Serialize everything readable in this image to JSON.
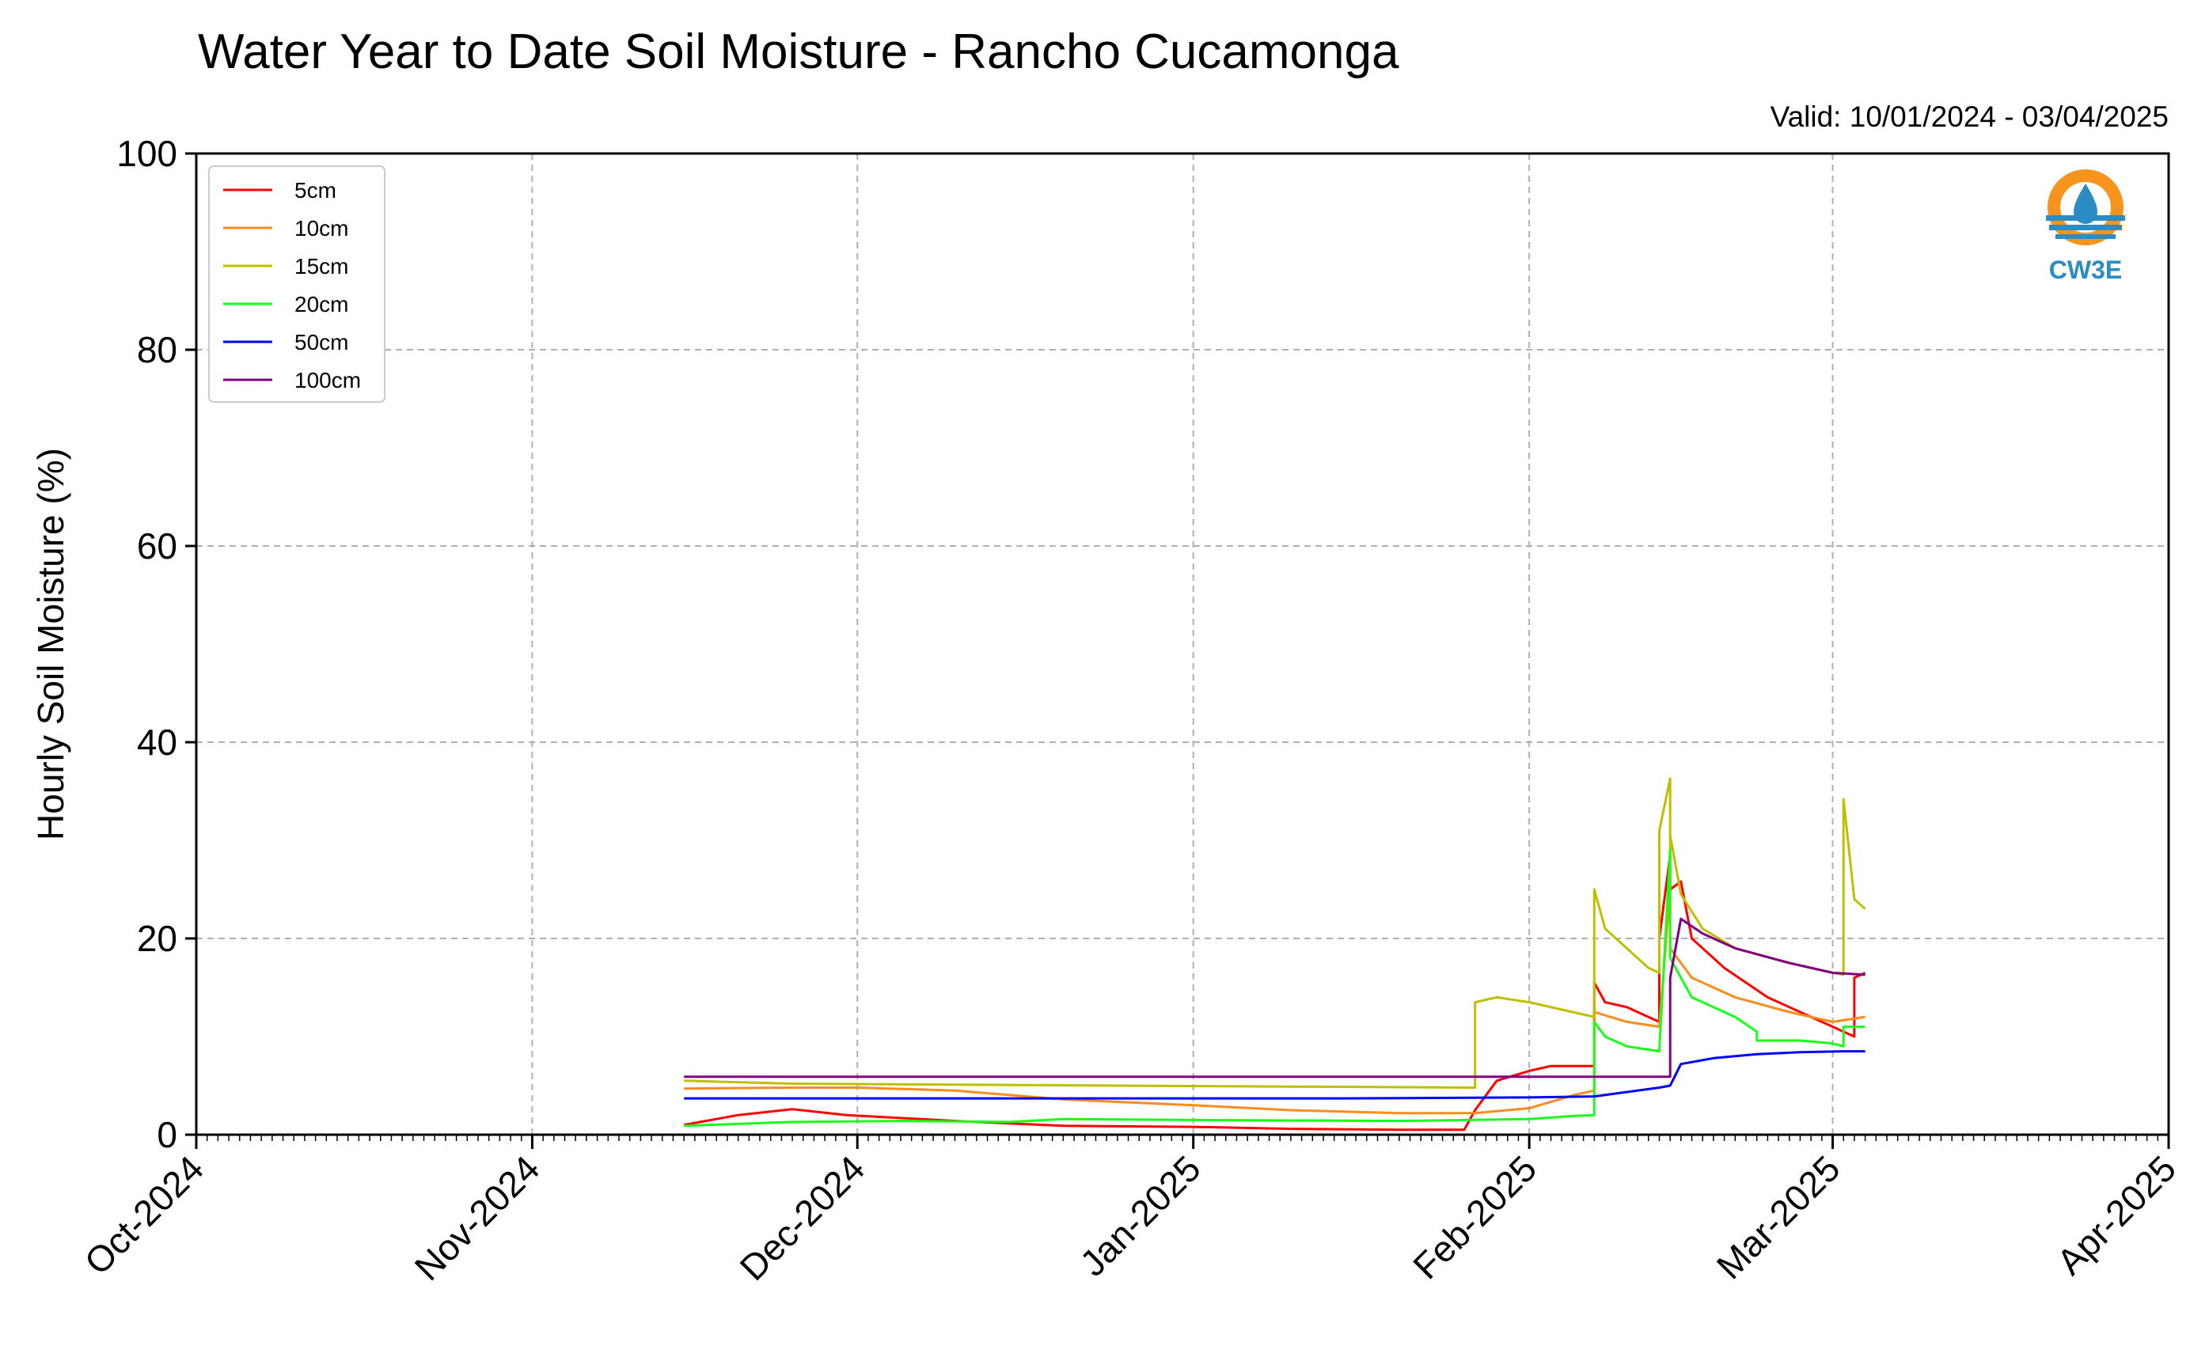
{
  "chart_data": {
    "type": "line",
    "title": "Water Year to Date Soil Moisture - Rancho Cucamonga",
    "subtitle": "Valid: 10/01/2024 - 03/04/2025",
    "xlabel": "",
    "ylabel": "Hourly Soil Moisture (%)",
    "xlim": [
      "2024-10-01",
      "2025-04-01"
    ],
    "ylim": [
      0,
      100
    ],
    "y_ticks": [
      0,
      20,
      40,
      60,
      80,
      100
    ],
    "x_ticks": [
      {
        "date": "2024-10-01",
        "label": "Oct-2024"
      },
      {
        "date": "2024-11-01",
        "label": "Nov-2024"
      },
      {
        "date": "2024-12-01",
        "label": "Dec-2024"
      },
      {
        "date": "2025-01-01",
        "label": "Jan-2025"
      },
      {
        "date": "2025-02-01",
        "label": "Feb-2025"
      },
      {
        "date": "2025-03-01",
        "label": "Mar-2025"
      },
      {
        "date": "2025-04-01",
        "label": "Apr-2025"
      }
    ],
    "grid": true,
    "legend_position": "top-left",
    "series": [
      {
        "name": "5cm",
        "color": "#ff0000",
        "points": [
          [
            "2024-11-15",
            1.0
          ],
          [
            "2024-11-20",
            2.0
          ],
          [
            "2024-11-25",
            2.6
          ],
          [
            "2024-11-30",
            2.0
          ],
          [
            "2024-12-10",
            1.4
          ],
          [
            "2024-12-20",
            0.9
          ],
          [
            "2025-01-01",
            0.8
          ],
          [
            "2025-01-10",
            0.6
          ],
          [
            "2025-01-20",
            0.5
          ],
          [
            "2025-01-26",
            0.5
          ],
          [
            "2025-01-27",
            2.5
          ],
          [
            "2025-01-29",
            5.5
          ],
          [
            "2025-02-01",
            6.5
          ],
          [
            "2025-02-03",
            7.0
          ],
          [
            "2025-02-06",
            7.0
          ],
          [
            "2025-02-07",
            7.0
          ],
          [
            "2025-02-07",
            15.5
          ],
          [
            "2025-02-08",
            13.5
          ],
          [
            "2025-02-10",
            13.0
          ],
          [
            "2025-02-12",
            12.0
          ],
          [
            "2025-02-13",
            11.5
          ],
          [
            "2025-02-13",
            20.0
          ],
          [
            "2025-02-14",
            28.5
          ],
          [
            "2025-02-14",
            25.0
          ],
          [
            "2025-02-15",
            25.8
          ],
          [
            "2025-02-16",
            20.0
          ],
          [
            "2025-02-19",
            17.0
          ],
          [
            "2025-02-23",
            14.0
          ],
          [
            "2025-02-27",
            12.0
          ],
          [
            "2025-03-02",
            10.5
          ],
          [
            "2025-03-03",
            10.0
          ],
          [
            "2025-03-03",
            16.0
          ],
          [
            "2025-03-04",
            16.5
          ]
        ]
      },
      {
        "name": "10cm",
        "color": "#ff8c1a",
        "points": [
          [
            "2024-11-15",
            4.7
          ],
          [
            "2024-11-25",
            4.8
          ],
          [
            "2024-12-01",
            4.8
          ],
          [
            "2024-12-10",
            4.5
          ],
          [
            "2024-12-20",
            3.6
          ],
          [
            "2025-01-01",
            3.0
          ],
          [
            "2025-01-10",
            2.5
          ],
          [
            "2025-01-20",
            2.2
          ],
          [
            "2025-01-27",
            2.2
          ],
          [
            "2025-02-01",
            2.7
          ],
          [
            "2025-02-05",
            4.0
          ],
          [
            "2025-02-07",
            4.5
          ],
          [
            "2025-02-07",
            12.5
          ],
          [
            "2025-02-10",
            11.5
          ],
          [
            "2025-02-13",
            11.0
          ],
          [
            "2025-02-14",
            25.0
          ],
          [
            "2025-02-14",
            19.0
          ],
          [
            "2025-02-16",
            16.0
          ],
          [
            "2025-02-20",
            14.0
          ],
          [
            "2025-02-25",
            12.5
          ],
          [
            "2025-03-01",
            11.5
          ],
          [
            "2025-03-04",
            12.0
          ]
        ]
      },
      {
        "name": "15cm",
        "color": "#bfbf00",
        "points": [
          [
            "2024-11-15",
            5.5
          ],
          [
            "2024-11-25",
            5.2
          ],
          [
            "2024-12-10",
            5.1
          ],
          [
            "2024-12-25",
            5.0
          ],
          [
            "2025-01-10",
            4.9
          ],
          [
            "2025-01-27",
            4.8
          ],
          [
            "2025-01-27",
            13.5
          ],
          [
            "2025-01-29",
            14.0
          ],
          [
            "2025-02-01",
            13.5
          ],
          [
            "2025-02-05",
            12.5
          ],
          [
            "2025-02-07",
            12.0
          ],
          [
            "2025-02-07",
            25.0
          ],
          [
            "2025-02-08",
            21.0
          ],
          [
            "2025-02-10",
            19.0
          ],
          [
            "2025-02-12",
            17.0
          ],
          [
            "2025-02-13",
            16.5
          ],
          [
            "2025-02-13",
            31.0
          ],
          [
            "2025-02-14",
            36.3
          ],
          [
            "2025-02-14",
            28.5
          ],
          [
            "2025-02-14",
            30.5
          ],
          [
            "2025-02-15",
            24.5
          ],
          [
            "2025-02-17",
            21.0
          ],
          [
            "2025-02-20",
            19.0
          ],
          [
            "2025-02-25",
            17.5
          ],
          [
            "2025-03-01",
            16.5
          ],
          [
            "2025-03-02",
            16.3
          ],
          [
            "2025-03-02",
            34.2
          ],
          [
            "2025-03-03",
            24.0
          ],
          [
            "2025-03-04",
            23.0
          ]
        ]
      },
      {
        "name": "20cm",
        "color": "#1aff1a",
        "points": [
          [
            "2024-11-15",
            0.9
          ],
          [
            "2024-11-20",
            1.1
          ],
          [
            "2024-11-25",
            1.3
          ],
          [
            "2024-12-05",
            1.4
          ],
          [
            "2024-12-15",
            1.3
          ],
          [
            "2024-12-20",
            1.6
          ],
          [
            "2025-01-01",
            1.5
          ],
          [
            "2025-01-20",
            1.4
          ],
          [
            "2025-02-01",
            1.6
          ],
          [
            "2025-02-05",
            1.9
          ],
          [
            "2025-02-07",
            2.0
          ],
          [
            "2025-02-07",
            11.5
          ],
          [
            "2025-02-08",
            10.0
          ],
          [
            "2025-02-10",
            9.0
          ],
          [
            "2025-02-13",
            8.5
          ],
          [
            "2025-02-14",
            29.0
          ],
          [
            "2025-02-14",
            18.0
          ],
          [
            "2025-02-16",
            14.0
          ],
          [
            "2025-02-20",
            12.0
          ],
          [
            "2025-02-22",
            10.5
          ],
          [
            "2025-02-22",
            9.6
          ],
          [
            "2025-02-26",
            9.6
          ],
          [
            "2025-03-01",
            9.3
          ],
          [
            "2025-03-02",
            9.0
          ],
          [
            "2025-03-02",
            11.0
          ],
          [
            "2025-03-04",
            11.0
          ]
        ]
      },
      {
        "name": "50cm",
        "color": "#0000ff",
        "points": [
          [
            "2024-11-15",
            3.7
          ],
          [
            "2024-12-15",
            3.7
          ],
          [
            "2025-01-15",
            3.7
          ],
          [
            "2025-02-01",
            3.8
          ],
          [
            "2025-02-07",
            3.9
          ],
          [
            "2025-02-13",
            4.8
          ],
          [
            "2025-02-14",
            5.0
          ],
          [
            "2025-02-15",
            7.2
          ],
          [
            "2025-02-18",
            7.8
          ],
          [
            "2025-02-22",
            8.2
          ],
          [
            "2025-02-26",
            8.4
          ],
          [
            "2025-03-02",
            8.5
          ],
          [
            "2025-03-04",
            8.5
          ]
        ]
      },
      {
        "name": "100cm",
        "color": "#800080",
        "points": [
          [
            "2024-11-15",
            5.9
          ],
          [
            "2024-12-15",
            5.9
          ],
          [
            "2025-01-15",
            5.9
          ],
          [
            "2025-02-01",
            5.9
          ],
          [
            "2025-02-14",
            5.9
          ],
          [
            "2025-02-14",
            16.0
          ],
          [
            "2025-02-15",
            22.0
          ],
          [
            "2025-02-17",
            20.5
          ],
          [
            "2025-02-20",
            19.0
          ],
          [
            "2025-02-25",
            17.5
          ],
          [
            "2025-03-01",
            16.5
          ],
          [
            "2025-03-04",
            16.3
          ]
        ]
      }
    ]
  },
  "logo": {
    "text": "CW3E",
    "orange": "#f7941d",
    "blue": "#2b8cc4"
  }
}
